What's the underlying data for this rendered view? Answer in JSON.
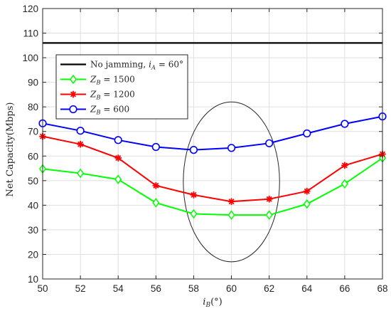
{
  "chart_data": {
    "type": "line",
    "title": "",
    "xlabel_main": "i",
    "xlabel_sub": "B",
    "xlabel_unit": "(°)",
    "ylabel": "Net Capacity(Mbps)",
    "xlim": [
      50,
      68
    ],
    "ylim": [
      10,
      120
    ],
    "xticks": [
      50,
      52,
      54,
      56,
      58,
      60,
      62,
      64,
      66,
      68
    ],
    "yticks": [
      10,
      20,
      30,
      40,
      50,
      60,
      70,
      80,
      90,
      100,
      110,
      120
    ],
    "grid": true,
    "legend_position": "top-left",
    "x": [
      50,
      52,
      54,
      56,
      58,
      60,
      62,
      64,
      66,
      68
    ],
    "series": [
      {
        "name": "No jamming, i_A = 60°",
        "legend_parts": {
          "pre": "No jamming, ",
          "var": "i",
          "sub": "A",
          "post": " = 60°"
        },
        "color": "#000000",
        "marker": "none",
        "values": [
          106,
          106,
          106,
          106,
          106,
          106,
          106,
          106,
          106,
          106
        ]
      },
      {
        "name": "Z_B = 1500",
        "legend_parts": {
          "pre": "",
          "var": "Z",
          "sub": "B",
          "post": " = 1500"
        },
        "color": "#00ff00",
        "marker": "diamond",
        "values": [
          54.8,
          53.0,
          50.5,
          41.0,
          36.5,
          36.0,
          36.0,
          40.5,
          48.7,
          59.2
        ]
      },
      {
        "name": "Z_B = 1200",
        "legend_parts": {
          "pre": "",
          "var": "Z",
          "sub": "B",
          "post": " = 1200"
        },
        "color": "#ff0000",
        "marker": "asterisk",
        "values": [
          68.0,
          64.8,
          59.2,
          48.0,
          44.2,
          41.5,
          42.5,
          45.7,
          56.2,
          60.8
        ]
      },
      {
        "name": "Z_B = 600",
        "legend_parts": {
          "pre": "",
          "var": "Z",
          "sub": "B",
          "post": " = 600"
        },
        "color": "#0000ff",
        "marker": "circle",
        "values": [
          73.3,
          70.3,
          66.5,
          63.7,
          62.5,
          63.3,
          65.2,
          69.2,
          73.1,
          76.1
        ]
      }
    ],
    "annotations": [
      {
        "type": "ellipse",
        "center": [
          60,
          49.5
        ],
        "radius_x": 2.55,
        "radius_y": 32.5,
        "color": "#262626"
      }
    ]
  }
}
